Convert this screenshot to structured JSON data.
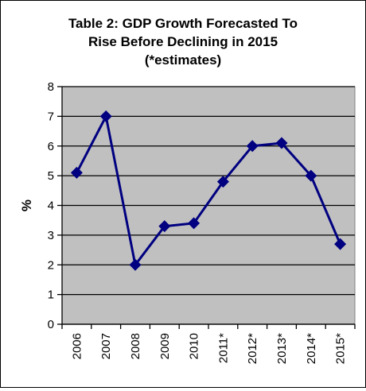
{
  "chart_data": {
    "type": "line",
    "title": [
      "Table 2: GDP Growth Forecasted To",
      "Rise Before Declining in 2015",
      "(*estimates)"
    ],
    "xlabel": "",
    "ylabel": "%",
    "categories": [
      "2006",
      "2007",
      "2008",
      "2009",
      "2010",
      "2011*",
      "2012*",
      "2013*",
      "2014*",
      "2015*"
    ],
    "series": [
      {
        "values": [
          5.1,
          7.0,
          2.0,
          3.3,
          3.4,
          4.8,
          6.0,
          6.1,
          5.0,
          2.7
        ]
      }
    ],
    "ylim": [
      0,
      8
    ],
    "yticks": [
      0,
      1,
      2,
      3,
      4,
      5,
      6,
      7,
      8
    ],
    "grid": true,
    "legend": "none",
    "colors": {
      "line": "#000080",
      "marker": "#000080",
      "plot_background": "#C0C0C0",
      "gridline": "#000000"
    }
  }
}
